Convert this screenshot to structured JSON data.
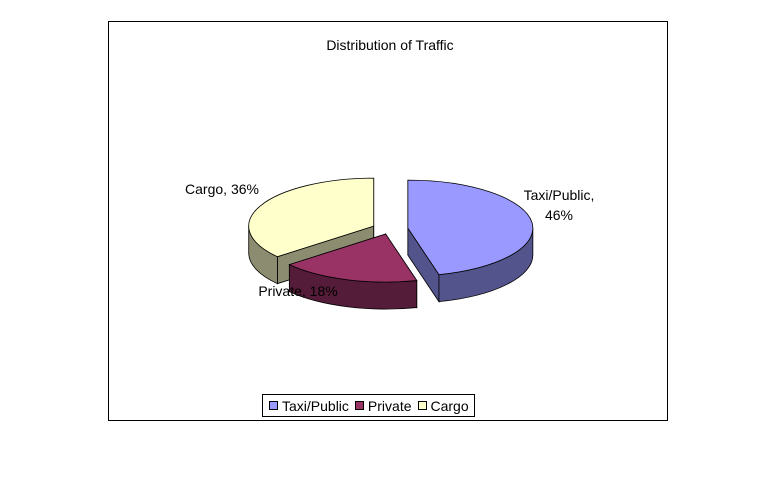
{
  "chart_data": {
    "type": "pie",
    "title": "Distribution of Traffic",
    "labels": [
      "Taxi/Public",
      "Private",
      "Cargo"
    ],
    "values": [
      46,
      18,
      36
    ],
    "data_labels": [
      "Taxi/Public, 46%",
      "Private, 18%",
      "Cargo, 36%"
    ],
    "colors": [
      "#9999ff",
      "#993366",
      "#ffffcc"
    ],
    "style": "3d-exploded",
    "legend_position": "bottom"
  }
}
